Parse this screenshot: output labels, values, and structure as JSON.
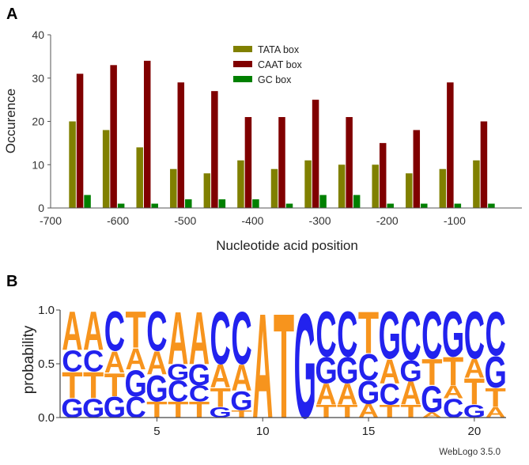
{
  "panel_a_label": "A",
  "panel_b_label": "B",
  "chart_data": [
    {
      "type": "bar",
      "title": "",
      "xlabel": "Nucleotide acid position",
      "ylabel": "Occurence",
      "xlim": [
        -700,
        0
      ],
      "ylim": [
        0,
        40
      ],
      "xticks": [
        "-700",
        "-600",
        "-500",
        "-400",
        "-300",
        "-200",
        "-100"
      ],
      "yticks": [
        "0",
        "10",
        "20",
        "30",
        "40"
      ],
      "categories": [
        -650,
        -600,
        -550,
        -500,
        -450,
        -400,
        -350,
        -300,
        -250,
        -200,
        -150,
        -100,
        -50
      ],
      "legend_position": "top-center",
      "series": [
        {
          "name": "TATA box",
          "color": "#808000",
          "values": [
            20,
            18,
            14,
            9,
            8,
            11,
            9,
            11,
            10,
            10,
            8,
            9,
            11
          ]
        },
        {
          "name": "CAAT box",
          "color": "#800000",
          "values": [
            31,
            33,
            34,
            29,
            27,
            21,
            21,
            25,
            21,
            15,
            18,
            29,
            20
          ]
        },
        {
          "name": "GC box",
          "color": "#008000",
          "values": [
            3,
            1,
            1,
            2,
            2,
            2,
            1,
            3,
            3,
            1,
            1,
            1,
            1
          ]
        }
      ]
    },
    {
      "type": "sequence-logo",
      "ylabel": "probability",
      "ylim": [
        0,
        1
      ],
      "yticks": [
        "0.0",
        "0.5",
        "1.0"
      ],
      "xticks": [
        "5",
        "10",
        "15",
        "20"
      ],
      "credit": "WebLogo 3.5.0",
      "colors": {
        "A": "#f7941d",
        "T": "#f7941d",
        "C": "#2222ee",
        "G": "#2222ee"
      },
      "positions": [
        {
          "pos": 1,
          "stack": [
            [
              "G",
              0.18
            ],
            [
              "T",
              0.25
            ],
            [
              "C",
              0.2
            ],
            [
              "A",
              0.37
            ]
          ]
        },
        {
          "pos": 2,
          "stack": [
            [
              "G",
              0.18
            ],
            [
              "T",
              0.25
            ],
            [
              "C",
              0.2
            ],
            [
              "A",
              0.37
            ]
          ]
        },
        {
          "pos": 3,
          "stack": [
            [
              "G",
              0.2
            ],
            [
              "T",
              0.22
            ],
            [
              "A",
              0.2
            ],
            [
              "C",
              0.38
            ]
          ]
        },
        {
          "pos": 4,
          "stack": [
            [
              "C",
              0.2
            ],
            [
              "G",
              0.25
            ],
            [
              "A",
              0.2
            ],
            [
              "T",
              0.35
            ]
          ]
        },
        {
          "pos": 5,
          "stack": [
            [
              "T",
              0.15
            ],
            [
              "G",
              0.25
            ],
            [
              "A",
              0.22
            ],
            [
              "C",
              0.38
            ]
          ]
        },
        {
          "pos": 6,
          "stack": [
            [
              "T",
              0.15
            ],
            [
              "C",
              0.2
            ],
            [
              "G",
              0.15
            ],
            [
              "A",
              0.5
            ]
          ]
        },
        {
          "pos": 7,
          "stack": [
            [
              "T",
              0.15
            ],
            [
              "C",
              0.15
            ],
            [
              "G",
              0.2
            ],
            [
              "A",
              0.5
            ]
          ]
        },
        {
          "pos": 8,
          "stack": [
            [
              "G",
              0.1
            ],
            [
              "T",
              0.18
            ],
            [
              "A",
              0.22
            ],
            [
              "C",
              0.5
            ]
          ]
        },
        {
          "pos": 9,
          "stack": [
            [
              "T",
              0.07
            ],
            [
              "G",
              0.18
            ],
            [
              "A",
              0.25
            ],
            [
              "C",
              0.5
            ]
          ]
        },
        {
          "pos": 10,
          "stack": [
            [
              "A",
              1.0
            ]
          ]
        },
        {
          "pos": 11,
          "stack": [
            [
              "T",
              1.0
            ]
          ]
        },
        {
          "pos": 12,
          "stack": [
            [
              "G",
              1.0
            ]
          ]
        },
        {
          "pos": 13,
          "stack": [
            [
              "T",
              0.12
            ],
            [
              "A",
              0.2
            ],
            [
              "G",
              0.25
            ],
            [
              "C",
              0.43
            ]
          ]
        },
        {
          "pos": 14,
          "stack": [
            [
              "T",
              0.12
            ],
            [
              "A",
              0.2
            ],
            [
              "G",
              0.25
            ],
            [
              "C",
              0.43
            ]
          ]
        },
        {
          "pos": 15,
          "stack": [
            [
              "A",
              0.13
            ],
            [
              "G",
              0.22
            ],
            [
              "C",
              0.25
            ],
            [
              "T",
              0.4
            ]
          ]
        },
        {
          "pos": 16,
          "stack": [
            [
              "T",
              0.12
            ],
            [
              "C",
              0.2
            ],
            [
              "A",
              0.23
            ],
            [
              "G",
              0.45
            ]
          ]
        },
        {
          "pos": 17,
          "stack": [
            [
              "T",
              0.12
            ],
            [
              "A",
              0.22
            ],
            [
              "G",
              0.2
            ],
            [
              "C",
              0.46
            ]
          ]
        },
        {
          "pos": 18,
          "stack": [
            [
              "A",
              0.05
            ],
            [
              "G",
              0.25
            ],
            [
              "T",
              0.25
            ],
            [
              "C",
              0.45
            ]
          ]
        },
        {
          "pos": 19,
          "stack": [
            [
              "C",
              0.18
            ],
            [
              "A",
              0.12
            ],
            [
              "T",
              0.27
            ],
            [
              "G",
              0.43
            ]
          ]
        },
        {
          "pos": 20,
          "stack": [
            [
              "G",
              0.12
            ],
            [
              "T",
              0.25
            ],
            [
              "A",
              0.18
            ],
            [
              "C",
              0.45
            ]
          ]
        },
        {
          "pos": 21,
          "stack": [
            [
              "A",
              0.1
            ],
            [
              "T",
              0.18
            ],
            [
              "G",
              0.3
            ],
            [
              "C",
              0.42
            ]
          ]
        }
      ]
    }
  ]
}
